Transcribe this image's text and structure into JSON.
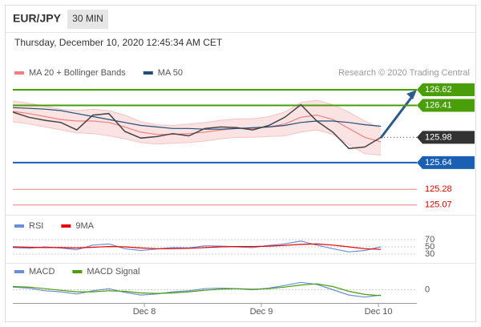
{
  "header": {
    "symbol": "EUR/JPY",
    "interval": "30 MIN",
    "timestamp": "Thursday, December 10, 2020 12:45:34 AM CET"
  },
  "chart_data": [
    {
      "type": "price",
      "credit": "Research © 2020 Trading Central",
      "xlim": [
        0,
        25.25
      ],
      "ylim": [
        124.97,
        126.75
      ],
      "xticks": [
        {
          "value": 8.22,
          "label": "Dec 8"
        },
        {
          "value": 15.53,
          "label": "Dec 9"
        },
        {
          "value": 22.85,
          "label": "Dec 10"
        }
      ],
      "price": {
        "color": "#444444",
        "values": [
          126.32,
          126.25,
          126.21,
          126.18,
          126.08,
          126.28,
          126.3,
          126.06,
          125.97,
          125.99,
          126.03,
          126.0,
          126.1,
          126.12,
          126.11,
          126.08,
          126.14,
          126.25,
          126.42,
          126.2,
          126.05,
          125.83,
          125.85,
          125.98
        ]
      },
      "series": [
        {
          "name": "MA 20 + Bollinger Bands",
          "color": "#f08080",
          "values": [
            126.33,
            126.3,
            126.26,
            126.22,
            126.2,
            126.2,
            126.18,
            126.12,
            126.05,
            126.02,
            126.02,
            126.03,
            126.05,
            126.08,
            126.1,
            126.1,
            126.12,
            126.16,
            126.25,
            126.28,
            126.22,
            126.1,
            125.98,
            125.92
          ],
          "upper": [
            126.47,
            126.44,
            126.4,
            126.36,
            126.34,
            126.36,
            126.34,
            126.28,
            126.19,
            126.15,
            126.14,
            126.16,
            126.18,
            126.21,
            126.23,
            126.23,
            126.26,
            126.32,
            126.45,
            126.48,
            126.42,
            126.32,
            126.2,
            126.1
          ],
          "lower": [
            126.19,
            126.16,
            126.12,
            126.08,
            126.04,
            126.03,
            126.0,
            125.96,
            125.91,
            125.89,
            125.9,
            125.91,
            125.93,
            125.96,
            125.98,
            125.98,
            125.99,
            126.0,
            126.05,
            126.08,
            126.02,
            125.88,
            125.76,
            125.74
          ]
        },
        {
          "name": "MA 50",
          "color": "#1f4e79",
          "values": [
            126.38,
            126.37,
            126.36,
            126.34,
            126.3,
            126.26,
            126.22,
            126.18,
            126.14,
            126.12,
            126.1,
            126.1,
            126.09,
            126.09,
            126.1,
            126.11,
            126.12,
            126.14,
            126.18,
            126.2,
            126.2,
            126.18,
            126.15,
            126.13
          ]
        }
      ],
      "levels": [
        {
          "value": 126.62,
          "color": "#4a9e0a",
          "style": "box",
          "line": "solid"
        },
        {
          "value": 126.41,
          "color": "#4a9e0a",
          "style": "box",
          "line": "solid"
        },
        {
          "value": 125.98,
          "color": "#333333",
          "style": "box",
          "line": "dotted"
        },
        {
          "value": 125.64,
          "color": "#1a5fb4",
          "style": "box",
          "line": "solid"
        },
        {
          "value": 125.28,
          "color": "#e00000",
          "style": "text",
          "line": "thin"
        },
        {
          "value": 125.07,
          "color": "#e00000",
          "style": "text",
          "line": "thin"
        }
      ]
    },
    {
      "type": "line",
      "xlim": [
        0,
        25.25
      ],
      "ylim": [
        19,
        90
      ],
      "yticks": [
        70,
        50,
        30
      ],
      "series": [
        {
          "name": "RSI",
          "color": "#6b8fd6",
          "values": [
            48,
            46,
            50,
            47,
            42,
            55,
            58,
            45,
            40,
            44,
            48,
            47,
            53,
            52,
            50,
            48,
            54,
            58,
            66,
            55,
            45,
            36,
            40,
            50
          ]
        },
        {
          "name": "9MA",
          "color": "#e60000",
          "values": [
            50,
            49,
            48,
            48,
            47,
            49,
            51,
            50,
            47,
            45,
            45,
            46,
            48,
            50,
            51,
            51,
            52,
            54,
            57,
            58,
            55,
            50,
            45,
            43
          ]
        }
      ]
    },
    {
      "type": "line",
      "xlim": [
        0,
        25.25
      ],
      "ylim": [
        -0.25,
        0.25
      ],
      "yticks": [
        0
      ],
      "series": [
        {
          "name": "MACD",
          "color": "#6b8fd6",
          "values": [
            0.05,
            0.03,
            -0.02,
            -0.04,
            -0.08,
            -0.02,
            0.02,
            -0.05,
            -0.1,
            -0.08,
            -0.04,
            -0.02,
            0.02,
            0.03,
            0.02,
            0.0,
            0.03,
            0.08,
            0.14,
            0.1,
            0.0,
            -0.1,
            -0.14,
            -0.1
          ]
        },
        {
          "name": "MACD Signal",
          "color": "#4a9e0a",
          "values": [
            0.06,
            0.05,
            0.02,
            -0.01,
            -0.04,
            -0.04,
            -0.02,
            -0.03,
            -0.06,
            -0.07,
            -0.06,
            -0.04,
            -0.01,
            0.01,
            0.02,
            0.01,
            0.02,
            0.05,
            0.09,
            0.11,
            0.06,
            -0.03,
            -0.09,
            -0.11
          ]
        }
      ]
    }
  ]
}
